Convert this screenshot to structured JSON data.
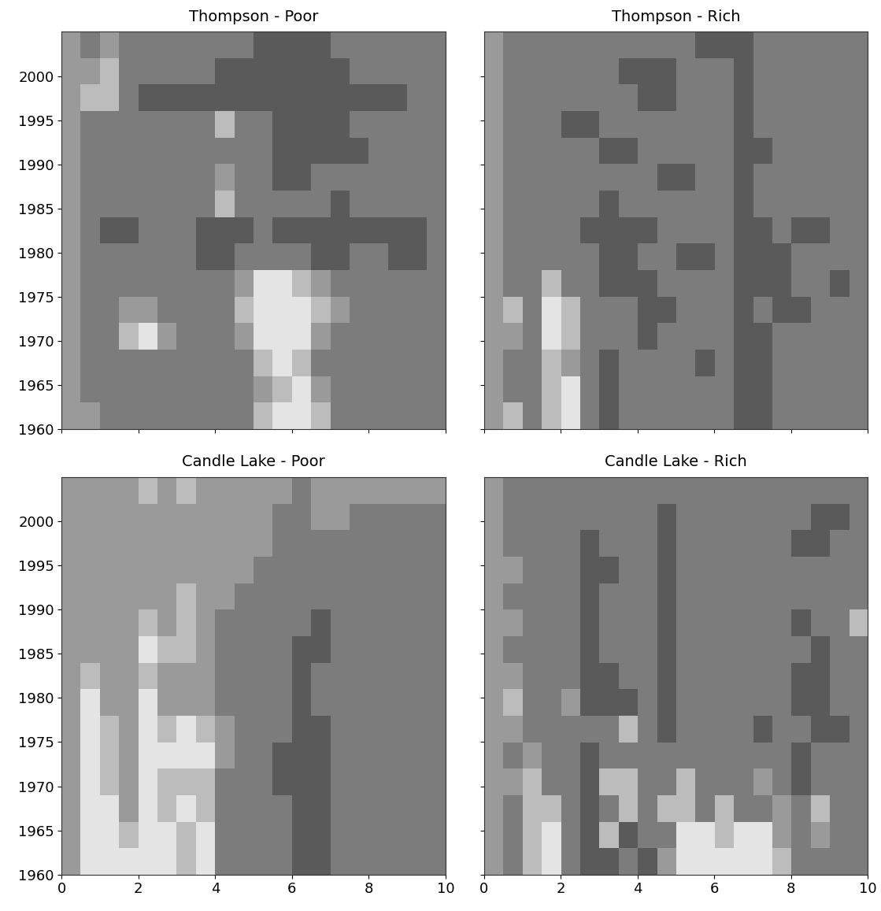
{
  "chart_data": [
    {
      "type": "heatmap",
      "title": "Thompson - Poor",
      "xlim": [
        0,
        10
      ],
      "xticks": [
        0,
        2,
        4,
        6,
        8,
        10
      ],
      "ylim": [
        1960,
        2005
      ],
      "yticks": [
        1960,
        1965,
        1970,
        1975,
        1980,
        1985,
        1990,
        1995,
        2000
      ],
      "tick_labels": "y",
      "cells": [
        [
          2,
          2,
          1,
          1,
          1,
          1,
          1,
          1,
          1,
          1,
          3,
          4,
          4,
          3,
          1,
          1,
          1,
          1,
          1,
          1
        ],
        [
          2,
          1,
          1,
          1,
          1,
          1,
          1,
          1,
          1,
          1,
          2,
          3,
          4,
          2,
          1,
          1,
          1,
          1,
          1,
          1
        ],
        [
          2,
          1,
          1,
          1,
          1,
          1,
          1,
          1,
          1,
          1,
          3,
          4,
          3,
          1,
          1,
          1,
          1,
          1,
          1,
          1
        ],
        [
          2,
          1,
          1,
          3,
          4,
          2,
          1,
          1,
          1,
          2,
          4,
          4,
          4,
          2,
          1,
          1,
          1,
          1,
          1,
          1
        ],
        [
          2,
          1,
          1,
          2,
          2,
          1,
          1,
          1,
          1,
          3,
          4,
          4,
          4,
          3,
          2,
          1,
          1,
          1,
          1,
          1
        ],
        [
          2,
          1,
          1,
          1,
          1,
          1,
          1,
          1,
          1,
          2,
          4,
          4,
          3,
          2,
          1,
          1,
          1,
          1,
          1,
          1
        ],
        [
          2,
          1,
          1,
          1,
          1,
          1,
          1,
          0,
          0,
          1,
          1,
          1,
          1,
          0,
          0,
          1,
          1,
          0,
          0,
          1
        ],
        [
          2,
          1,
          0,
          0,
          1,
          1,
          1,
          0,
          0,
          0,
          1,
          0,
          0,
          0,
          0,
          0,
          0,
          0,
          0,
          1
        ],
        [
          2,
          1,
          1,
          1,
          1,
          1,
          1,
          1,
          3,
          1,
          1,
          1,
          1,
          1,
          0,
          1,
          1,
          1,
          1,
          1
        ],
        [
          2,
          1,
          1,
          1,
          1,
          1,
          1,
          1,
          2,
          1,
          1,
          0,
          0,
          1,
          1,
          1,
          1,
          1,
          1,
          1
        ],
        [
          2,
          1,
          1,
          1,
          1,
          1,
          1,
          1,
          1,
          1,
          1,
          0,
          0,
          0,
          0,
          0,
          1,
          1,
          1,
          1
        ],
        [
          2,
          1,
          1,
          1,
          1,
          1,
          1,
          1,
          3,
          1,
          1,
          0,
          0,
          0,
          0,
          1,
          1,
          1,
          1,
          1
        ],
        [
          2,
          3,
          3,
          1,
          0,
          0,
          0,
          0,
          0,
          0,
          0,
          0,
          0,
          0,
          0,
          0,
          0,
          0,
          1,
          1
        ],
        [
          2,
          2,
          3,
          1,
          1,
          1,
          1,
          1,
          0,
          0,
          0,
          0,
          0,
          0,
          0,
          1,
          1,
          1,
          1,
          1
        ],
        [
          2,
          1,
          2,
          1,
          1,
          1,
          1,
          1,
          1,
          1,
          0,
          0,
          0,
          0,
          1,
          1,
          1,
          1,
          1,
          1
        ]
      ]
    },
    {
      "type": "heatmap",
      "title": "Thompson - Rich",
      "xlim": [
        0,
        10
      ],
      "xticks": [
        0,
        2,
        4,
        6,
        8,
        10
      ],
      "ylim": [
        1960,
        2005
      ],
      "yticks": [
        1960,
        1965,
        1970,
        1975,
        1980,
        1985,
        1990,
        1995,
        2000
      ],
      "tick_labels": false,
      "cells": [
        [
          2,
          3,
          1,
          3,
          4,
          1,
          0,
          1,
          1,
          1,
          1,
          1,
          1,
          0,
          0,
          1,
          1,
          1,
          1,
          1
        ],
        [
          2,
          1,
          1,
          3,
          4,
          1,
          0,
          1,
          1,
          1,
          1,
          1,
          1,
          0,
          0,
          1,
          1,
          1,
          1,
          1
        ],
        [
          2,
          1,
          1,
          3,
          2,
          1,
          0,
          1,
          1,
          1,
          1,
          0,
          1,
          0,
          0,
          1,
          1,
          1,
          1,
          1
        ],
        [
          2,
          2,
          1,
          4,
          3,
          1,
          1,
          1,
          0,
          1,
          1,
          1,
          1,
          0,
          0,
          1,
          1,
          1,
          1,
          1
        ],
        [
          2,
          3,
          1,
          4,
          3,
          1,
          1,
          1,
          0,
          0,
          1,
          1,
          1,
          0,
          1,
          0,
          0,
          1,
          1,
          1
        ],
        [
          2,
          1,
          1,
          3,
          1,
          1,
          0,
          0,
          0,
          1,
          1,
          1,
          1,
          0,
          0,
          0,
          1,
          1,
          0,
          1
        ],
        [
          2,
          1,
          1,
          1,
          1,
          1,
          0,
          0,
          1,
          1,
          0,
          0,
          1,
          0,
          0,
          0,
          1,
          1,
          1,
          1
        ],
        [
          2,
          1,
          1,
          1,
          1,
          0,
          0,
          0,
          0,
          1,
          1,
          1,
          1,
          0,
          0,
          1,
          0,
          0,
          1,
          1
        ],
        [
          2,
          1,
          1,
          1,
          1,
          1,
          0,
          1,
          1,
          1,
          1,
          1,
          1,
          0,
          1,
          1,
          1,
          1,
          1,
          1
        ],
        [
          2,
          1,
          1,
          1,
          1,
          1,
          1,
          1,
          1,
          0,
          0,
          1,
          1,
          0,
          1,
          1,
          1,
          1,
          1,
          1
        ],
        [
          2,
          1,
          1,
          1,
          1,
          1,
          0,
          0,
          1,
          1,
          1,
          1,
          1,
          0,
          0,
          1,
          1,
          1,
          1,
          1
        ],
        [
          2,
          1,
          1,
          1,
          0,
          0,
          1,
          1,
          1,
          1,
          1,
          1,
          1,
          0,
          1,
          1,
          1,
          1,
          1,
          1
        ],
        [
          2,
          1,
          1,
          1,
          1,
          1,
          1,
          1,
          0,
          0,
          1,
          1,
          1,
          0,
          1,
          1,
          1,
          1,
          1,
          1
        ],
        [
          2,
          1,
          1,
          1,
          1,
          1,
          1,
          0,
          0,
          0,
          1,
          1,
          1,
          0,
          1,
          1,
          1,
          1,
          1,
          1
        ],
        [
          2,
          1,
          1,
          1,
          1,
          1,
          1,
          1,
          1,
          1,
          1,
          0,
          0,
          0,
          1,
          1,
          1,
          1,
          1,
          1
        ]
      ]
    },
    {
      "type": "heatmap",
      "title": "Candle Lake - Poor",
      "xlim": [
        0,
        10
      ],
      "xticks": [
        0,
        2,
        4,
        6,
        8,
        10
      ],
      "ylim": [
        1960,
        2005
      ],
      "yticks": [
        1960,
        1965,
        1970,
        1975,
        1980,
        1985,
        1990,
        1995,
        2000
      ],
      "tick_labels": true,
      "cells": [
        [
          2,
          4,
          4,
          4,
          4,
          4,
          3,
          4,
          1,
          1,
          1,
          1,
          0,
          0,
          1,
          1,
          1,
          1,
          1,
          1
        ],
        [
          2,
          4,
          4,
          3,
          4,
          4,
          3,
          4,
          1,
          1,
          1,
          1,
          0,
          0,
          1,
          1,
          1,
          1,
          1,
          1
        ],
        [
          2,
          4,
          4,
          2,
          4,
          3,
          4,
          3,
          1,
          1,
          1,
          1,
          0,
          0,
          1,
          1,
          1,
          1,
          1,
          1
        ],
        [
          2,
          4,
          3,
          2,
          4,
          3,
          3,
          3,
          1,
          1,
          1,
          0,
          0,
          0,
          1,
          1,
          1,
          1,
          1,
          1
        ],
        [
          2,
          4,
          3,
          2,
          4,
          4,
          4,
          4,
          2,
          1,
          1,
          0,
          0,
          0,
          1,
          1,
          1,
          1,
          1,
          1
        ],
        [
          2,
          4,
          3,
          2,
          4,
          3,
          4,
          3,
          2,
          1,
          1,
          1,
          0,
          0,
          1,
          1,
          1,
          1,
          1,
          1
        ],
        [
          2,
          4,
          2,
          2,
          4,
          2,
          2,
          2,
          1,
          1,
          1,
          1,
          0,
          1,
          1,
          1,
          1,
          1,
          1,
          1
        ],
        [
          2,
          3,
          2,
          2,
          3,
          2,
          2,
          2,
          1,
          1,
          1,
          1,
          0,
          1,
          1,
          1,
          1,
          1,
          1,
          1
        ],
        [
          2,
          2,
          2,
          2,
          4,
          3,
          3,
          2,
          1,
          1,
          1,
          1,
          0,
          0,
          1,
          1,
          1,
          1,
          1,
          1
        ],
        [
          2,
          2,
          2,
          2,
          3,
          2,
          3,
          2,
          1,
          1,
          1,
          1,
          1,
          0,
          1,
          1,
          1,
          1,
          1,
          1
        ],
        [
          2,
          2,
          2,
          2,
          2,
          2,
          3,
          2,
          2,
          1,
          1,
          1,
          1,
          1,
          1,
          1,
          1,
          1,
          1,
          1
        ],
        [
          2,
          2,
          2,
          2,
          2,
          2,
          2,
          2,
          2,
          2,
          1,
          1,
          1,
          1,
          1,
          1,
          1,
          1,
          1,
          1
        ],
        [
          2,
          2,
          2,
          2,
          2,
          2,
          2,
          2,
          2,
          2,
          2,
          1,
          1,
          1,
          1,
          1,
          1,
          1,
          1,
          1
        ],
        [
          2,
          2,
          2,
          2,
          2,
          2,
          2,
          2,
          2,
          2,
          2,
          1,
          1,
          2,
          2,
          1,
          1,
          1,
          1,
          1
        ],
        [
          2,
          2,
          2,
          2,
          3,
          2,
          3,
          2,
          2,
          2,
          2,
          2,
          1,
          2,
          2,
          2,
          2,
          2,
          2,
          2
        ]
      ]
    },
    {
      "type": "heatmap",
      "title": "Candle Lake - Rich",
      "xlim": [
        0,
        10
      ],
      "xticks": [
        0,
        2,
        4,
        6,
        8,
        10
      ],
      "ylim": [
        1960,
        2005
      ],
      "yticks": [
        1960,
        1965,
        1970,
        1975,
        1980,
        1985,
        1990,
        1995,
        2000
      ],
      "tick_labels": "x",
      "cells": [
        [
          2,
          1,
          3,
          4,
          1,
          0,
          0,
          1,
          0,
          2,
          4,
          4,
          4,
          4,
          4,
          3,
          1,
          1,
          1,
          1
        ],
        [
          2,
          1,
          3,
          4,
          1,
          0,
          3,
          0,
          1,
          1,
          4,
          4,
          3,
          4,
          4,
          2,
          1,
          2,
          1,
          1
        ],
        [
          2,
          1,
          3,
          3,
          1,
          0,
          1,
          3,
          1,
          3,
          3,
          1,
          3,
          1,
          1,
          2,
          1,
          3,
          1,
          1
        ],
        [
          2,
          2,
          3,
          1,
          1,
          0,
          3,
          3,
          1,
          1,
          3,
          1,
          1,
          1,
          2,
          1,
          0,
          1,
          1,
          1
        ],
        [
          2,
          1,
          2,
          1,
          1,
          0,
          1,
          1,
          1,
          1,
          1,
          1,
          1,
          1,
          1,
          1,
          0,
          1,
          1,
          1
        ],
        [
          2,
          2,
          1,
          1,
          1,
          1,
          1,
          3,
          1,
          0,
          1,
          1,
          1,
          1,
          0,
          1,
          1,
          0,
          0,
          1
        ],
        [
          2,
          3,
          1,
          1,
          2,
          0,
          0,
          0,
          1,
          0,
          1,
          1,
          1,
          1,
          1,
          1,
          0,
          0,
          1,
          1
        ],
        [
          2,
          2,
          1,
          1,
          1,
          0,
          0,
          1,
          1,
          0,
          1,
          1,
          1,
          1,
          1,
          1,
          0,
          0,
          1,
          1
        ],
        [
          2,
          1,
          1,
          1,
          1,
          0,
          1,
          1,
          1,
          0,
          1,
          1,
          1,
          1,
          1,
          1,
          1,
          0,
          1,
          1
        ],
        [
          2,
          2,
          1,
          1,
          1,
          0,
          1,
          1,
          1,
          0,
          1,
          1,
          1,
          1,
          1,
          1,
          0,
          1,
          1,
          3
        ],
        [
          2,
          1,
          1,
          1,
          1,
          0,
          1,
          1,
          1,
          0,
          1,
          1,
          1,
          1,
          1,
          1,
          1,
          1,
          1,
          1
        ],
        [
          2,
          2,
          1,
          1,
          1,
          0,
          0,
          1,
          1,
          0,
          1,
          1,
          1,
          1,
          1,
          1,
          1,
          1,
          1,
          1
        ],
        [
          2,
          1,
          1,
          1,
          1,
          0,
          1,
          1,
          1,
          0,
          1,
          1,
          1,
          1,
          1,
          1,
          0,
          0,
          1,
          1
        ],
        [
          2,
          1,
          1,
          1,
          1,
          1,
          1,
          1,
          1,
          0,
          1,
          1,
          1,
          1,
          1,
          1,
          1,
          0,
          0,
          1
        ],
        [
          2,
          1,
          1,
          1,
          1,
          1,
          1,
          1,
          1,
          1,
          1,
          1,
          1,
          1,
          1,
          1,
          1,
          1,
          1,
          1
        ]
      ]
    }
  ]
}
